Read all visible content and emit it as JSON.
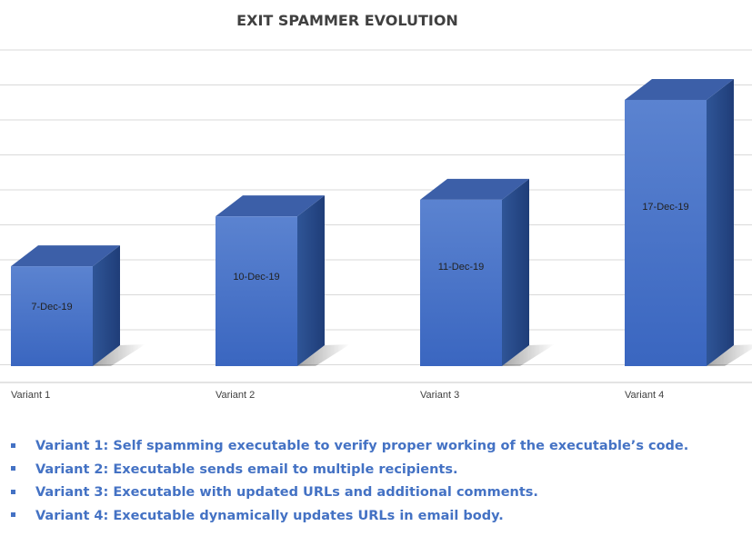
{
  "chart_data": {
    "type": "bar",
    "title": "EXIT SPAMMER  EVOLUTION",
    "categories": [
      "Variant 1",
      "Variant 2",
      "Variant 3",
      "Variant 4"
    ],
    "values": [
      3,
      4.5,
      5,
      8
    ],
    "bar_labels": [
      "7-Dec-19",
      "10-Dec-19",
      "11-Dec-19",
      "17-Dec-19"
    ],
    "ylim": [
      0,
      9.5
    ],
    "grid": true,
    "style": "3d-column",
    "colors": {
      "bar_front": "#4472c4",
      "bar_side": "#2f5597",
      "bar_top": "#3c5fa8",
      "grid": "#d9d9d9"
    }
  },
  "notes": [
    "Variant 1: Self spamming executable to verify proper working of the executable’s code.",
    "Variant 2: Executable sends email to multiple recipients.",
    "Variant 3: Executable with updated URLs and additional comments.",
    "Variant 4: Executable dynamically updates URLs in email body."
  ]
}
